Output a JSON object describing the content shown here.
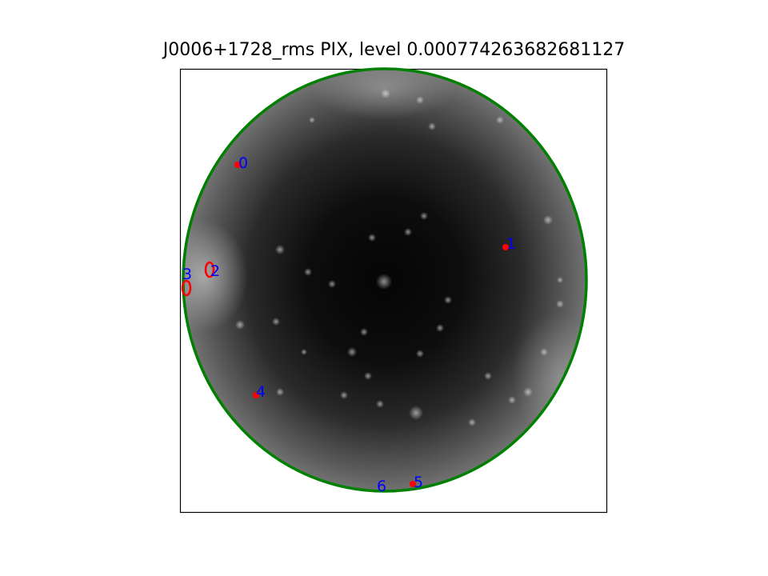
{
  "title": "J0006+1728_rms PIX, level 0.000774263682681127",
  "colors": {
    "boundary": "#008000",
    "contour": "#ff0000",
    "marker": "#ff0000",
    "label": "#0000ff",
    "frame": "#000000"
  },
  "sources": [
    {
      "id": "0",
      "label": "0"
    },
    {
      "id": "1",
      "label": "1"
    },
    {
      "id": "2",
      "label": "2"
    },
    {
      "id": "3",
      "label": "3"
    },
    {
      "id": "4",
      "label": "4"
    },
    {
      "id": "5",
      "label": "5"
    },
    {
      "id": "6",
      "label": "6"
    }
  ]
}
